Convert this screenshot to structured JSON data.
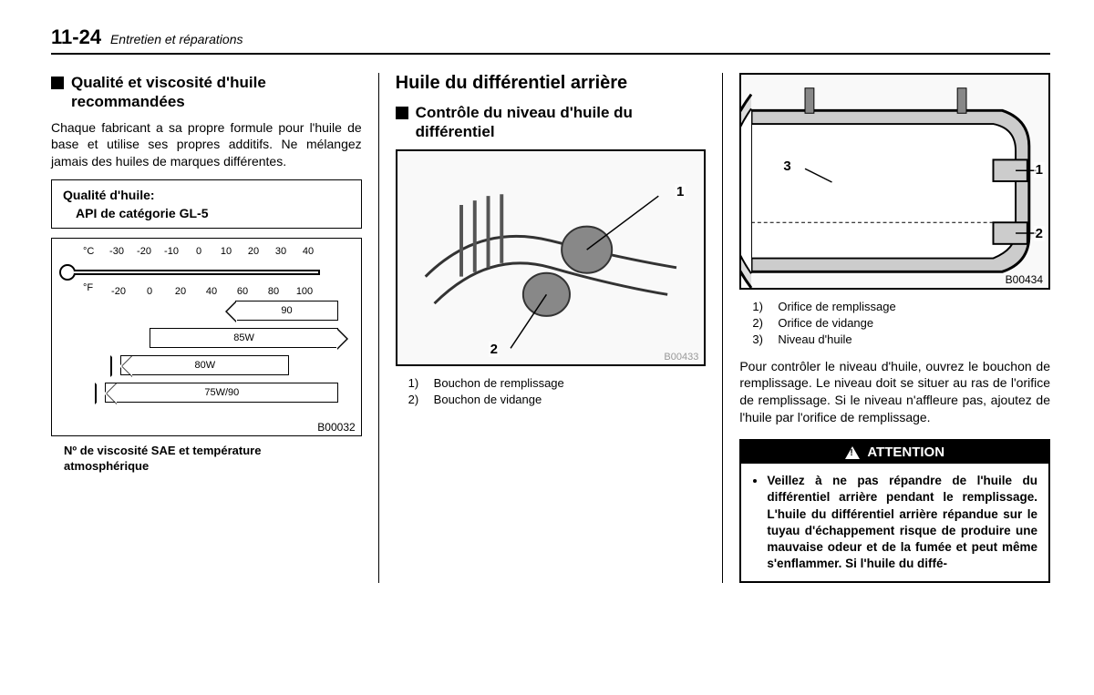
{
  "header": {
    "page_number": "11-24",
    "chapter": "Entretien et réparations"
  },
  "col1": {
    "heading": "Qualité et viscosité d'huile recommandées",
    "paragraph": "Chaque fabricant a sa propre formule pour l'huile de base et utilise ses propres additifs. Ne mélangez jamais des huiles de marques différentes.",
    "quality_box": {
      "label": "Qualité d'huile:",
      "value": "API de catégorie GL-5"
    },
    "chart": {
      "c_label": "°C",
      "c_ticks": [
        "-30",
        "-20",
        "-10",
        "0",
        "10",
        "20",
        "30",
        "40"
      ],
      "f_label": "°F",
      "f_ticks": [
        "-20",
        "0",
        "20",
        "40",
        "60",
        "80",
        "100"
      ],
      "bars": [
        {
          "label": "90",
          "left_pct": 55,
          "right_pct": 5,
          "arrow": "l"
        },
        {
          "label": "85W",
          "left_pct": 22,
          "right_pct": 5,
          "arrow": "r"
        },
        {
          "label": "80W",
          "left_pct": 11,
          "right_pct": 24,
          "arrow": "lr"
        },
        {
          "label": "75W/90",
          "left_pct": 5,
          "right_pct": 5,
          "arrow": "lr"
        }
      ],
      "code": "B00032"
    },
    "caption": "Nº de viscosité SAE et température atmosphérique"
  },
  "col2": {
    "main_heading": "Huile du différentiel arrière",
    "sub_heading": "Contrôle du niveau d'huile du différentiel",
    "figure": {
      "callouts": {
        "c1": "1",
        "c2": "2"
      },
      "code": "B00433"
    },
    "legend": [
      {
        "n": "1)",
        "t": "Bouchon de remplissage"
      },
      {
        "n": "2)",
        "t": "Bouchon de vidange"
      }
    ]
  },
  "col3": {
    "figure": {
      "callouts": {
        "c1": "1",
        "c2": "2",
        "c3": "3"
      },
      "code": "B00434"
    },
    "legend": [
      {
        "n": "1)",
        "t": "Orifice de remplissage"
      },
      {
        "n": "2)",
        "t": "Orifice de vidange"
      },
      {
        "n": "3)",
        "t": "Niveau d'huile"
      }
    ],
    "paragraph": "Pour contrôler le niveau d'huile, ouvrez le bouchon de remplissage. Le niveau doit se situer au ras de l'orifice de remplissage. Si le niveau n'affleure pas, ajoutez de l'huile par l'orifice de remplissage.",
    "attention": {
      "title": "ATTENTION",
      "body": "Veillez à ne pas répandre de l'huile du différentiel arrière pendant le remplissage. L'huile du différentiel arrière répandue sur le tuyau d'échappement risque de produire une mauvaise odeur et de la fumée et peut même s'enflammer. Si l'huile du diffé-"
    }
  }
}
